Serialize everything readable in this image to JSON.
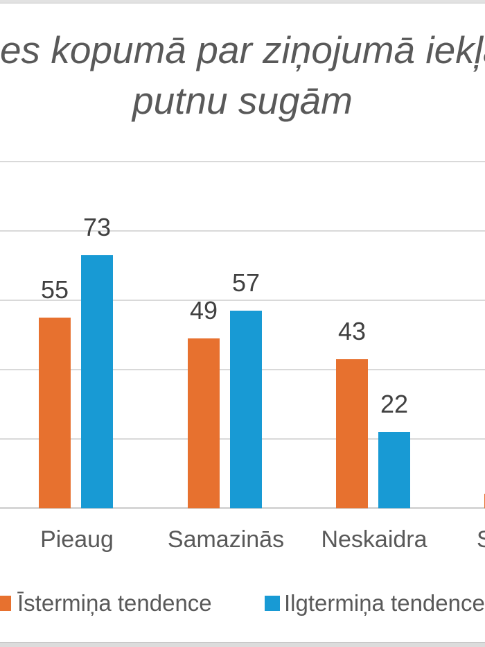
{
  "chart_data": {
    "type": "bar",
    "title_lines": [
      "ces kopumā par ziņojumā iekļa",
      "putnu sugām"
    ],
    "categories": [
      "Pieaug",
      "Samazinās",
      "Neskaidra",
      "Stabila"
    ],
    "series": [
      {
        "name": "Īstermiņa tendence",
        "color": "#E7712F",
        "values": [
          55,
          49,
          43,
          null
        ]
      },
      {
        "name": "Ilgtermiņa tendence",
        "color": "#189AD4",
        "values": [
          73,
          57,
          22,
          null
        ]
      }
    ],
    "ylim": [
      0,
      100
    ],
    "gridline_step": 20,
    "grid": true,
    "value_labels": true,
    "legend_position": "bottom"
  },
  "colors": {
    "title_text": "#595959",
    "value_label_text": "#404040",
    "category_label_text": "#595959",
    "gridline": "#D9D9D9",
    "axis_line": "#D6D6D6",
    "series_orange": "#E7712F",
    "series_blue": "#189AD4"
  }
}
